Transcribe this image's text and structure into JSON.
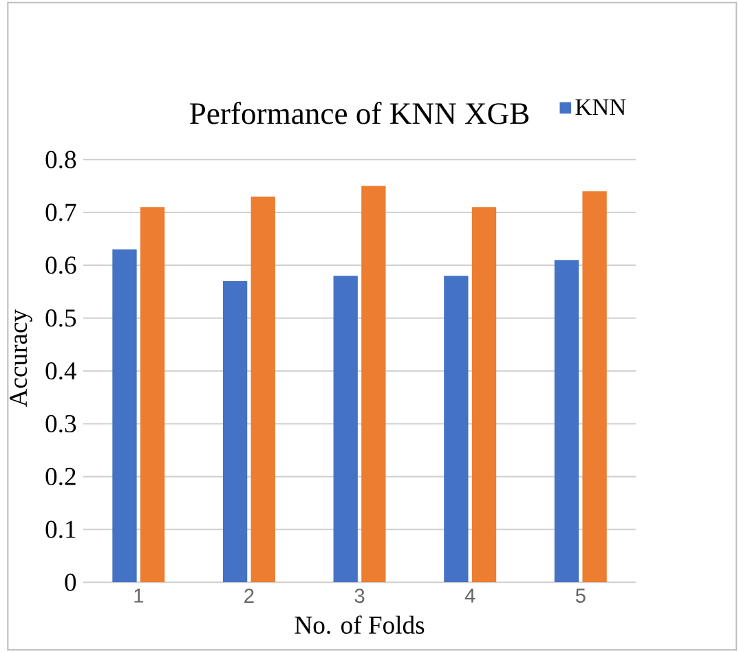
{
  "chart_data": {
    "type": "bar",
    "title": "Performance  of KNN XGB",
    "xlabel": "No. of Folds",
    "ylabel": "Accuracy",
    "categories": [
      "1",
      "2",
      "3",
      "4",
      "5"
    ],
    "series": [
      {
        "name": "KNN",
        "color": "#4472c4",
        "values": [
          0.63,
          0.57,
          0.58,
          0.58,
          0.61
        ]
      },
      {
        "color": "#ed7d31",
        "values": [
          0.71,
          0.73,
          0.75,
          0.71,
          0.74
        ]
      }
    ],
    "ylim": [
      0,
      0.8
    ],
    "yticks": [
      0,
      0.1,
      0.2,
      0.3,
      0.4,
      0.5,
      0.6,
      0.7,
      0.8
    ],
    "grid": "y",
    "legend": "top right"
  }
}
